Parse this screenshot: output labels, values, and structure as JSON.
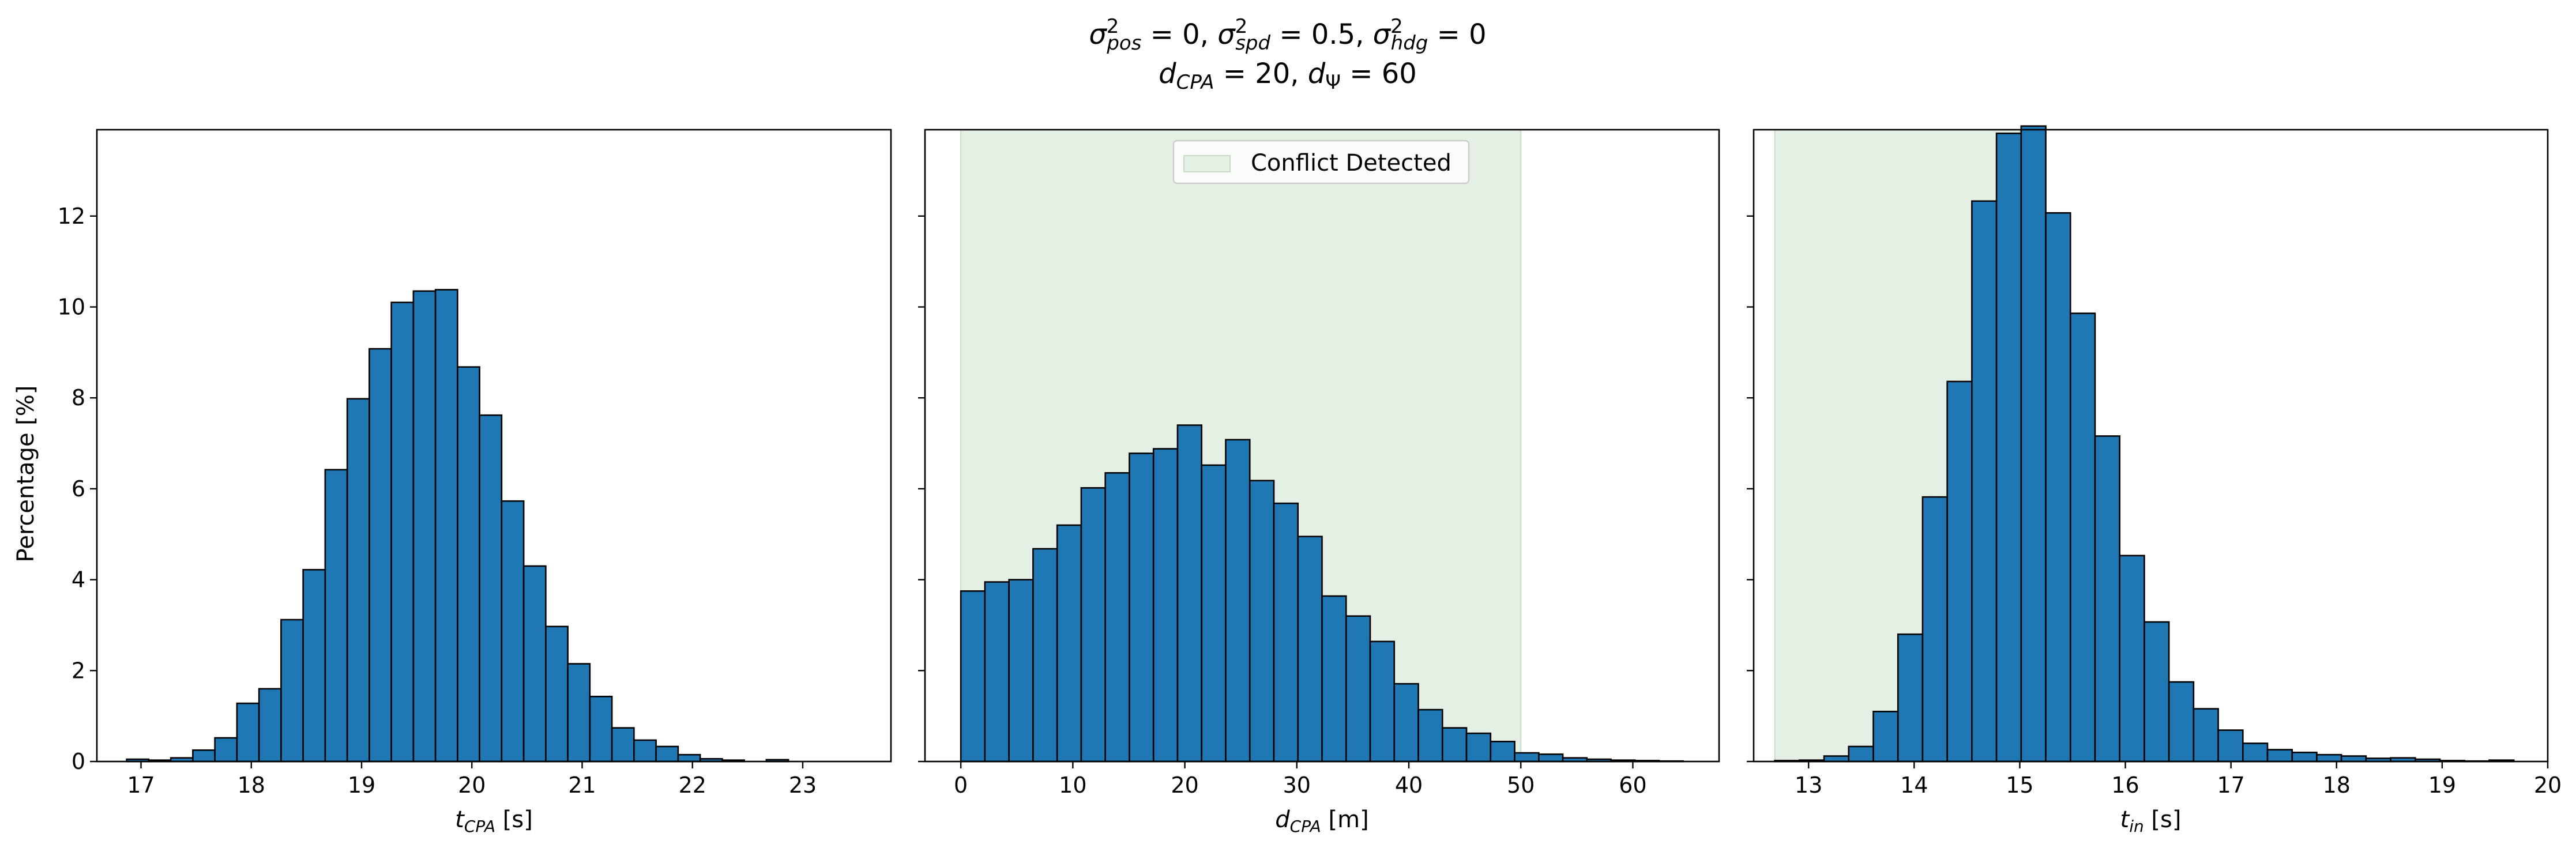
{
  "figure": {
    "title": {
      "line1": [
        {
          "t": "σ",
          "it": true
        },
        {
          "sup": "2",
          "sub": "pos",
          "subit": true
        },
        {
          "t": " = 0, "
        },
        {
          "t": "σ",
          "it": true
        },
        {
          "sup": "2",
          "sub": "spd",
          "subit": true
        },
        {
          "t": " = 0.5, "
        },
        {
          "t": "σ",
          "it": true
        },
        {
          "sup": "2",
          "sub": "hdg",
          "subit": true
        },
        {
          "t": " = 0"
        }
      ],
      "line2": [
        {
          "t": "d",
          "it": true
        },
        {
          "sub": "CPA",
          "subit": true
        },
        {
          "t": " = 20, "
        },
        {
          "t": "d",
          "it": true
        },
        {
          "sub": "Ψ",
          "subit": false
        },
        {
          "t": " = 60"
        }
      ]
    },
    "ylabel": "Percentage [%]",
    "ylim": [
      0,
      13.9
    ],
    "yticks": [
      "0",
      "2",
      "4",
      "6",
      "8",
      "10",
      "12"
    ],
    "legend": {
      "label": "Conflict Detected",
      "placement": "top-center",
      "color": "#e5f0e4"
    },
    "bar_color": "#1f77b4",
    "edge_color": "#000000",
    "shade_color": "#e5f0e4"
  },
  "chart_data": [
    {
      "type": "bar",
      "name": "t_CPA",
      "xlabel": [
        {
          "t": "t",
          "it": true
        },
        {
          "sub": "CPA",
          "subit": true
        },
        {
          "t": " [s]"
        }
      ],
      "xlim": [
        16.6,
        23.8
      ],
      "xticks": [
        "17",
        "18",
        "19",
        "20",
        "21",
        "22",
        "23"
      ],
      "bin_start": 16.87,
      "bin_width": 0.2,
      "values": [
        0.05,
        0.03,
        0.08,
        0.25,
        0.52,
        1.28,
        1.6,
        3.12,
        4.22,
        6.42,
        7.98,
        9.08,
        10.1,
        10.35,
        10.38,
        8.68,
        7.62,
        5.73,
        4.3,
        2.97,
        2.15,
        1.43,
        0.74,
        0.47,
        0.33,
        0.15,
        0.06,
        0.03,
        0.0,
        0.04
      ],
      "shade": null
    },
    {
      "type": "bar",
      "name": "d_CPA",
      "xlabel": [
        {
          "t": "d",
          "it": true
        },
        {
          "sub": "CPA",
          "subit": true
        },
        {
          "t": " [m]"
        }
      ],
      "xlim": [
        -3.2,
        67.7
      ],
      "xticks": [
        "0",
        "10",
        "20",
        "30",
        "40",
        "50",
        "60"
      ],
      "bin_start": 0,
      "bin_width": 2.15,
      "values": [
        3.75,
        3.95,
        4.0,
        4.68,
        5.2,
        6.02,
        6.35,
        6.78,
        6.88,
        7.4,
        6.52,
        7.08,
        6.18,
        5.68,
        4.95,
        3.64,
        3.2,
        2.64,
        1.71,
        1.14,
        0.74,
        0.62,
        0.44,
        0.19,
        0.16,
        0.08,
        0.05,
        0.03,
        0.02,
        0.01
      ],
      "shade": [
        0,
        50
      ]
    },
    {
      "type": "bar",
      "name": "t_in",
      "xlabel": [
        {
          "t": "t",
          "it": true
        },
        {
          "sub": "in",
          "subit": true
        },
        {
          "t": " [s]"
        }
      ],
      "xlim": [
        12.48,
        20.0
      ],
      "xticks": [
        "13",
        "14",
        "15",
        "16",
        "17",
        "18",
        "19",
        "20"
      ],
      "bin_start": 12.68,
      "bin_width": 0.2333,
      "values": [
        0.02,
        0.03,
        0.12,
        0.33,
        1.1,
        2.8,
        5.82,
        8.36,
        12.33,
        13.82,
        13.98,
        12.07,
        9.86,
        7.16,
        4.53,
        3.07,
        1.75,
        1.16,
        0.69,
        0.4,
        0.26,
        0.2,
        0.15,
        0.12,
        0.07,
        0.08,
        0.05,
        0.02,
        0.01,
        0.03
      ],
      "shade": [
        12.68,
        15.0
      ]
    }
  ]
}
